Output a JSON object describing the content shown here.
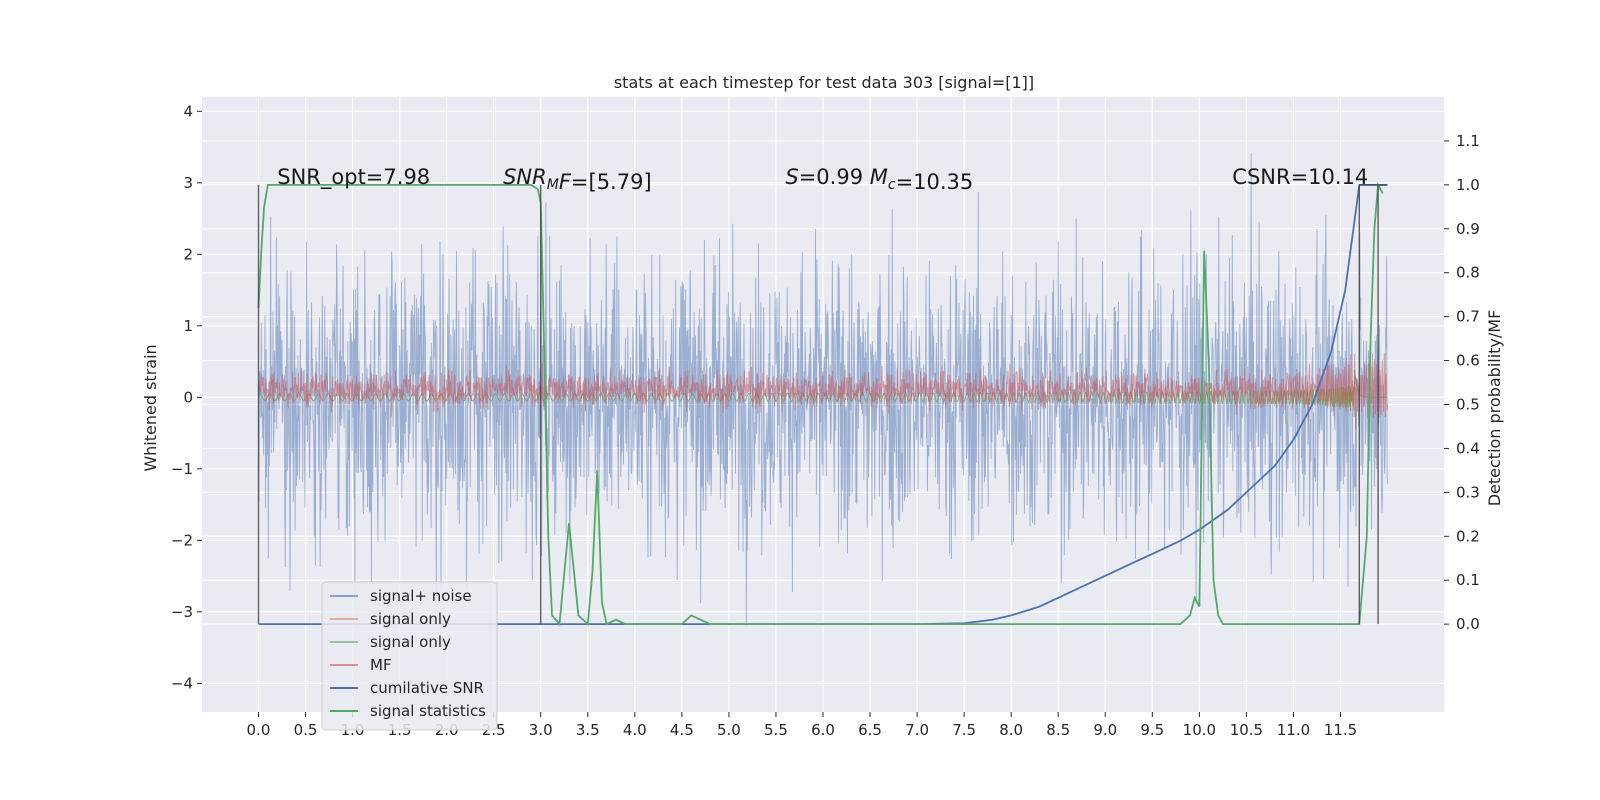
{
  "chart_data": {
    "type": "line",
    "title": "stats at each timestep for test data 303 [signal=[1]]",
    "ylabel": "Whitened strain",
    "y2label": "Detection probability/MF",
    "xlim": [
      -0.6,
      12.6
    ],
    "ylim": [
      -4.4,
      4.2
    ],
    "y2lim": [
      -0.2,
      1.2
    ],
    "xticks": [
      0.0,
      0.5,
      1.0,
      1.5,
      2.0,
      2.5,
      3.0,
      3.5,
      4.0,
      4.5,
      5.0,
      5.5,
      6.0,
      6.5,
      7.0,
      7.5,
      8.0,
      8.5,
      9.0,
      9.5,
      10.0,
      10.5,
      11.0,
      11.5
    ],
    "xtick_labels": [
      "0.0",
      "0.5",
      "1.0",
      "1.5",
      "2.0",
      "2.5",
      "3.0",
      "3.5",
      "4.0",
      "4.5",
      "5.0",
      "5.5",
      "6.0",
      "6.5",
      "7.0",
      "7.5",
      "8.0",
      "8.5",
      "9.0",
      "9.5",
      "10.0",
      "10.5",
      "11.0",
      "11.5"
    ],
    "yticks": [
      -4,
      -3,
      -2,
      -1,
      0,
      1,
      2,
      3,
      4
    ],
    "ytick_labels": [
      "−4",
      "−3",
      "−2",
      "−1",
      "0",
      "1",
      "2",
      "3",
      "4"
    ],
    "y2ticks": [
      0.0,
      0.1,
      0.2,
      0.3,
      0.4,
      0.5,
      0.6,
      0.7,
      0.8,
      0.9,
      1.0,
      1.1
    ],
    "y2tick_labels": [
      "0.0",
      "0.1",
      "0.2",
      "0.3",
      "0.4",
      "0.5",
      "0.6",
      "0.7",
      "0.8",
      "0.9",
      "1.0",
      "1.1"
    ],
    "grid": true,
    "legend_position": "lower-left",
    "annotations": [
      {
        "text_parts": [
          {
            "t": "SNR_opt=7.98",
            "i": false
          }
        ],
        "x": 0.2,
        "y2": 1.0
      },
      {
        "text_parts": [
          {
            "t": "SNR",
            "i": true
          },
          {
            "t": "M",
            "i": true,
            "sub": true
          },
          {
            "t": "F",
            "i": true
          },
          {
            "t": "=[5.79]",
            "i": false
          }
        ],
        "x": 2.6,
        "y2": 1.0
      },
      {
        "text_parts": [
          {
            "t": "S",
            "i": true
          },
          {
            "t": "=0.99   ",
            "i": false
          },
          {
            "t": "M",
            "i": true
          },
          {
            "t": "c",
            "i": true,
            "sub": true
          },
          {
            "t": "=10.35",
            "i": false
          }
        ],
        "x": 5.6,
        "y2": 1.0
      },
      {
        "text_parts": [
          {
            "t": "CSNR=10.14",
            "i": false
          }
        ],
        "x": 10.35,
        "y2": 1.0
      }
    ],
    "series": [
      {
        "name": "signal+ noise",
        "axis": "left",
        "color": "#4c72b0",
        "alpha": 0.5,
        "x_range": [
          0.0,
          12.0
        ],
        "noise_sigma": 1.0,
        "mean": 0.0
      },
      {
        "name": "signal only",
        "axis": "left",
        "color": "#dd8452",
        "alpha": 0.6,
        "x_range": [
          0.0,
          12.0
        ],
        "chirp": true,
        "amplitude_end": 1.0,
        "merger": 11.65
      },
      {
        "name": "signal only",
        "axis": "left",
        "color": "#55a868",
        "alpha": 0.6,
        "x_range": [
          0.0,
          12.0
        ],
        "chirp": true,
        "amplitude_end": 1.0,
        "merger": 11.65
      },
      {
        "name": "MF",
        "axis": "right",
        "color": "#c44e52",
        "alpha": 0.5,
        "x_range": [
          0.0,
          12.0
        ],
        "mean": 0.535,
        "noise_sigma": 0.02
      },
      {
        "name": "cumilative SNR",
        "axis": "right",
        "color": "#4c72b0",
        "alpha": 1.0,
        "x": [
          0.0,
          7.0,
          7.5,
          7.8,
          8.0,
          8.3,
          8.5,
          8.8,
          9.0,
          9.3,
          9.5,
          9.8,
          10.0,
          10.3,
          10.5,
          10.8,
          11.0,
          11.2,
          11.4,
          11.55,
          11.65,
          11.7,
          12.0
        ],
        "y": [
          0.0,
          0.0,
          0.002,
          0.01,
          0.02,
          0.04,
          0.06,
          0.09,
          0.11,
          0.14,
          0.16,
          0.19,
          0.215,
          0.26,
          0.3,
          0.36,
          0.42,
          0.5,
          0.62,
          0.76,
          0.92,
          1.0,
          1.0
        ]
      },
      {
        "name": "signal statistics",
        "axis": "right",
        "color": "#55a868",
        "alpha": 1.0,
        "x": [
          0.0,
          0.03,
          0.06,
          0.1,
          2.9,
          2.97,
          3.0,
          3.04,
          3.08,
          3.12,
          3.2,
          3.3,
          3.4,
          3.5,
          3.55,
          3.6,
          3.65,
          3.7,
          3.8,
          3.9,
          4.0,
          4.5,
          4.6,
          4.7,
          4.8,
          9.8,
          9.9,
          9.95,
          10.0,
          10.05,
          10.1,
          10.15,
          10.2,
          10.25,
          10.3,
          10.35,
          11.7,
          11.78,
          11.82,
          11.86,
          11.9,
          11.95
        ],
        "y": [
          0.72,
          0.85,
          0.95,
          1.0,
          1.0,
          0.99,
          0.96,
          0.6,
          0.2,
          0.02,
          0.0,
          0.23,
          0.02,
          0.0,
          0.12,
          0.35,
          0.05,
          0.0,
          0.01,
          0.0,
          0.0,
          0.0,
          0.02,
          0.01,
          0.0,
          0.0,
          0.02,
          0.06,
          0.04,
          0.85,
          0.6,
          0.1,
          0.02,
          0.0,
          0.0,
          0.0,
          0.0,
          0.2,
          0.65,
          0.9,
          1.0,
          0.98
        ]
      },
      {
        "name": "",
        "axis": "right",
        "color": "#444444",
        "alpha": 0.85,
        "segments": [
          [
            [
              0.0,
              0.0
            ],
            [
              0.0,
              1.0
            ]
          ],
          [
            [
              3.0,
              0.0
            ],
            [
              3.0,
              1.0
            ]
          ],
          [
            [
              11.7,
              0.0
            ],
            [
              11.7,
              1.0
            ]
          ],
          [
            [
              11.9,
              0.0
            ],
            [
              11.9,
              1.0
            ]
          ],
          [
            [
              11.7,
              1.0
            ],
            [
              12.0,
              1.0
            ]
          ]
        ]
      }
    ]
  }
}
